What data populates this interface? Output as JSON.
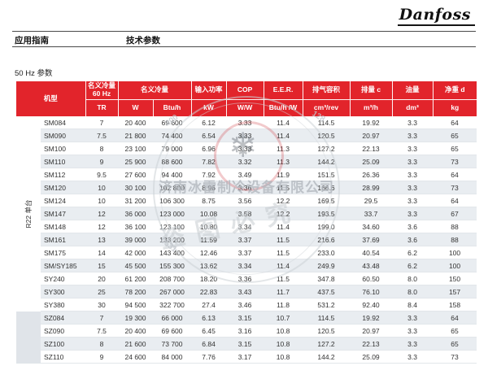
{
  "page": {
    "logo": "Danfoss",
    "nav_left": "应用指南",
    "nav_right": "技术参数",
    "section_title": "50 Hz 参数"
  },
  "watermark": {
    "company": "济南冰雷制冷设备有限公司",
    "warning": "盗图必究",
    "snowflake_icon": "❄",
    "phone_fragments": [
      "400",
      "0531",
      "128"
    ]
  },
  "table": {
    "accent_color": "#e2242b",
    "stripe_color": "#e9edf1",
    "header": {
      "model": "机型",
      "capacity60_line1": "名义冷量",
      "capacity60_line2": "60 Hz",
      "capacity": "名义冷量",
      "power": "输入功率",
      "cop": "COP",
      "eer": "E.E.R.",
      "swept_volume": "排气容积",
      "displacement": "排量 c",
      "oil_charge": "油量",
      "net_weight": "净重 d"
    },
    "units": [
      "TR",
      "W",
      "Btu/h",
      "kW",
      "W/W",
      "Btu/h /W",
      "cm³/rev",
      "m³/h",
      "dm³",
      "kg"
    ],
    "groups": [
      {
        "label": "R22 单台",
        "rows": 15,
        "shade": false
      },
      {
        "label": "",
        "rows": 4,
        "shade": true
      }
    ],
    "rows": [
      [
        "SM084",
        "7",
        "20 400",
        "69 600",
        "6.12",
        "3.33",
        "11.4",
        "114.5",
        "19.92",
        "3.3",
        "64"
      ],
      [
        "SM090",
        "7.5",
        "21 800",
        "74 400",
        "6.54",
        "3.33",
        "11.4",
        "120.5",
        "20.97",
        "3.3",
        "65"
      ],
      [
        "SM100",
        "8",
        "23 100",
        "79 000",
        "6.96",
        "3.33",
        "11.3",
        "127.2",
        "22.13",
        "3.3",
        "65"
      ],
      [
        "SM110",
        "9",
        "25 900",
        "88 600",
        "7.82",
        "3.32",
        "11.3",
        "144.2",
        "25.09",
        "3.3",
        "73"
      ],
      [
        "SM112",
        "9.5",
        "27 600",
        "94 400",
        "7.92",
        "3.49",
        "11.9",
        "151.5",
        "26.36",
        "3.3",
        "64"
      ],
      [
        "SM120",
        "10",
        "30 100",
        "102 800",
        "8.96",
        "3.36",
        "11.5",
        "166.6",
        "28.99",
        "3.3",
        "73"
      ],
      [
        "SM124",
        "10",
        "31 200",
        "106 300",
        "8.75",
        "3.56",
        "12.2",
        "169.5",
        "29.5",
        "3.3",
        "64"
      ],
      [
        "SM147",
        "12",
        "36 000",
        "123 000",
        "10.08",
        "3.58",
        "12.2",
        "193.5",
        "33.7",
        "3.3",
        "67"
      ],
      [
        "SM148",
        "12",
        "36 100",
        "123 100",
        "10.80",
        "3.34",
        "11.4",
        "199.0",
        "34.60",
        "3.6",
        "88"
      ],
      [
        "SM161",
        "13",
        "39 000",
        "133 200",
        "11.59",
        "3.37",
        "11.5",
        "216.6",
        "37.69",
        "3.6",
        "88"
      ],
      [
        "SM175",
        "14",
        "42 000",
        "143 400",
        "12.46",
        "3.37",
        "11.5",
        "233.0",
        "40.54",
        "6.2",
        "100"
      ],
      [
        "SM/SY185",
        "15",
        "45 500",
        "155 300",
        "13.62",
        "3.34",
        "11.4",
        "249.9",
        "43.48",
        "6.2",
        "100"
      ],
      [
        "SY240",
        "20",
        "61 200",
        "208 700",
        "18.20",
        "3.36",
        "11.5",
        "347.8",
        "60.50",
        "8.0",
        "150"
      ],
      [
        "SY300",
        "25",
        "78 200",
        "267 000",
        "22.83",
        "3.43",
        "11.7",
        "437.5",
        "76.10",
        "8.0",
        "157"
      ],
      [
        "SY380",
        "30",
        "94 500",
        "322 700",
        "27.4",
        "3.46",
        "11.8",
        "531.2",
        "92.40",
        "8.4",
        "158"
      ],
      [
        "SZ084",
        "7",
        "19 300",
        "66 000",
        "6.13",
        "3.15",
        "10.7",
        "114.5",
        "19.92",
        "3.3",
        "64"
      ],
      [
        "SZ090",
        "7.5",
        "20 400",
        "69 600",
        "6.45",
        "3.16",
        "10.8",
        "120.5",
        "20.97",
        "3.3",
        "65"
      ],
      [
        "SZ100",
        "8",
        "21 600",
        "73 700",
        "6.84",
        "3.15",
        "10.8",
        "127.2",
        "22.13",
        "3.3",
        "65"
      ],
      [
        "SZ110",
        "9",
        "24 600",
        "84 000",
        "7.76",
        "3.17",
        "10.8",
        "144.2",
        "25.09",
        "3.3",
        "73"
      ]
    ]
  }
}
